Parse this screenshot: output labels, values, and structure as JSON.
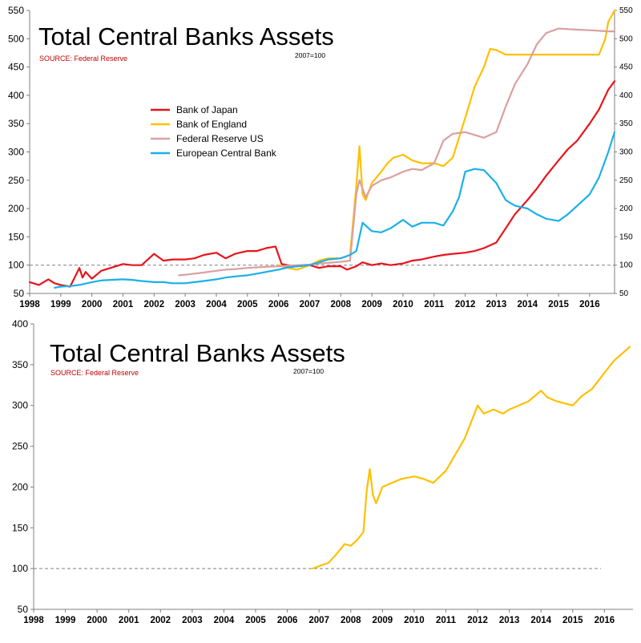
{
  "chart_data": [
    {
      "type": "line",
      "title": "Total Central Banks Assets",
      "source": "SOURCE: Federal Reserve",
      "note": "2007=100",
      "x_ticks": [
        "1998",
        "1999",
        "2000",
        "2001",
        "2002",
        "2003",
        "2004",
        "2005",
        "2006",
        "2007",
        "2008",
        "2009",
        "2010",
        "2011",
        "2012",
        "2013",
        "2014",
        "2015",
        "2016"
      ],
      "xlim": [
        1998,
        2016.8
      ],
      "ylim": [
        50,
        550
      ],
      "y_ticks": [
        50,
        100,
        150,
        200,
        250,
        300,
        350,
        400,
        450,
        500,
        550
      ],
      "right_y_ticks": [
        50,
        100,
        150,
        200,
        250,
        300,
        350,
        400,
        450,
        500,
        550
      ],
      "reference_line": 100,
      "legend_position": "upper-left",
      "series": [
        {
          "name": "Bank of Japan",
          "color": "#e8141c",
          "x": [
            1998.0,
            1998.3,
            1998.6,
            1998.8,
            1999.0,
            1999.3,
            1999.6,
            1999.7,
            1999.8,
            2000.0,
            2000.3,
            2000.6,
            2001.0,
            2001.3,
            2001.6,
            2002.0,
            2002.3,
            2002.6,
            2003.0,
            2003.3,
            2003.6,
            2004.0,
            2004.3,
            2004.6,
            2005.0,
            2005.3,
            2005.6,
            2005.9,
            2006.1,
            2006.3,
            2006.6,
            2007.0,
            2007.3,
            2007.6,
            2008.0,
            2008.2,
            2008.5,
            2008.7,
            2009.0,
            2009.3,
            2009.6,
            2010.0,
            2010.3,
            2010.6,
            2011.0,
            2011.3,
            2011.6,
            2012.0,
            2012.3,
            2012.6,
            2013.0,
            2013.3,
            2013.6,
            2014.0,
            2014.3,
            2014.6,
            2015.0,
            2015.3,
            2015.6,
            2016.0,
            2016.3,
            2016.6,
            2016.8
          ],
          "y": [
            70,
            65,
            75,
            68,
            65,
            62,
            95,
            78,
            88,
            76,
            90,
            95,
            102,
            100,
            100,
            120,
            108,
            110,
            110,
            112,
            118,
            122,
            112,
            120,
            125,
            125,
            130,
            133,
            102,
            100,
            98,
            100,
            95,
            98,
            98,
            92,
            98,
            105,
            100,
            103,
            100,
            103,
            108,
            110,
            115,
            118,
            120,
            122,
            125,
            130,
            140,
            165,
            190,
            215,
            235,
            258,
            285,
            305,
            320,
            350,
            375,
            410,
            425
          ]
        },
        {
          "name": "Bank of England",
          "color": "#ffc000",
          "x": [
            2006.0,
            2006.3,
            2006.6,
            2007.0,
            2007.3,
            2007.6,
            2008.0,
            2008.3,
            2008.5,
            2008.6,
            2008.7,
            2008.8,
            2009.0,
            2009.3,
            2009.5,
            2009.7,
            2010.0,
            2010.3,
            2010.6,
            2011.0,
            2011.3,
            2011.6,
            2012.0,
            2012.3,
            2012.6,
            2012.8,
            2013.0,
            2013.3,
            2013.6,
            2014.0,
            2014.3,
            2014.6,
            2015.0,
            2015.3,
            2015.6,
            2016.0,
            2016.3,
            2016.5,
            2016.6,
            2016.8
          ],
          "y": [
            100,
            95,
            92,
            100,
            108,
            112,
            112,
            118,
            240,
            310,
            225,
            215,
            245,
            265,
            280,
            290,
            295,
            285,
            280,
            280,
            275,
            290,
            360,
            415,
            450,
            482,
            480,
            472,
            472,
            472,
            472,
            472,
            472,
            472,
            472,
            472,
            472,
            500,
            530,
            550
          ]
        },
        {
          "name": "Federal Reserve US",
          "color": "#d9a0a0",
          "x": [
            2002.8,
            2003.0,
            2003.3,
            2003.6,
            2004.0,
            2004.3,
            2004.6,
            2005.0,
            2005.3,
            2005.6,
            2006.0,
            2006.3,
            2006.6,
            2007.0,
            2007.3,
            2007.6,
            2008.0,
            2008.3,
            2008.5,
            2008.6,
            2008.7,
            2008.8,
            2009.0,
            2009.3,
            2009.6,
            2010.0,
            2010.3,
            2010.6,
            2011.0,
            2011.3,
            2011.6,
            2012.0,
            2012.3,
            2012.6,
            2013.0,
            2013.3,
            2013.6,
            2014.0,
            2014.3,
            2014.6,
            2015.0,
            2015.3,
            2015.6,
            2016.0,
            2016.3,
            2016.6,
            2016.8
          ],
          "y": [
            82,
            83,
            85,
            87,
            90,
            92,
            93,
            95,
            96,
            97,
            98,
            99,
            100,
            101,
            103,
            104,
            106,
            108,
            225,
            250,
            235,
            220,
            240,
            250,
            255,
            265,
            270,
            268,
            280,
            320,
            332,
            335,
            330,
            325,
            335,
            380,
            420,
            455,
            490,
            510,
            518,
            517,
            516,
            515,
            514,
            513,
            513
          ]
        },
        {
          "name": "European Central Bank",
          "color": "#1ab0e8",
          "x": [
            1998.8,
            1999.0,
            1999.3,
            1999.6,
            2000.0,
            2000.3,
            2000.6,
            2001.0,
            2001.3,
            2001.6,
            2002.0,
            2002.3,
            2002.6,
            2003.0,
            2003.3,
            2003.6,
            2004.0,
            2004.3,
            2004.6,
            2005.0,
            2005.3,
            2005.6,
            2006.0,
            2006.3,
            2006.6,
            2007.0,
            2007.3,
            2007.6,
            2008.0,
            2008.3,
            2008.5,
            2008.7,
            2008.9,
            2009.0,
            2009.3,
            2009.6,
            2010.0,
            2010.3,
            2010.6,
            2011.0,
            2011.3,
            2011.6,
            2011.8,
            2012.0,
            2012.3,
            2012.6,
            2013.0,
            2013.3,
            2013.6,
            2014.0,
            2014.3,
            2014.6,
            2015.0,
            2015.3,
            2015.6,
            2016.0,
            2016.3,
            2016.6,
            2016.8
          ],
          "y": [
            60,
            62,
            63,
            65,
            70,
            73,
            74,
            75,
            74,
            72,
            70,
            70,
            68,
            68,
            70,
            72,
            75,
            78,
            80,
            82,
            85,
            88,
            92,
            96,
            98,
            100,
            105,
            110,
            112,
            118,
            125,
            175,
            165,
            160,
            158,
            165,
            180,
            168,
            175,
            175,
            170,
            195,
            220,
            265,
            270,
            268,
            245,
            215,
            205,
            200,
            190,
            182,
            178,
            190,
            205,
            225,
            255,
            300,
            335
          ]
        }
      ]
    },
    {
      "type": "line",
      "title": "Total Central Banks Assets",
      "source": "SOURCE: Federal Reserve",
      "note": "2007=100",
      "x_ticks": [
        "1998",
        "1999",
        "2000",
        "2001",
        "2002",
        "2003",
        "2004",
        "2005",
        "2006",
        "2007",
        "2008",
        "2009",
        "2010",
        "2011",
        "2012",
        "2013",
        "2014",
        "2015",
        "2016"
      ],
      "xlim": [
        1998,
        2016.9
      ],
      "ylim": [
        50,
        400
      ],
      "y_ticks": [
        50,
        100,
        150,
        200,
        250,
        300,
        350,
        400
      ],
      "reference_line": 100,
      "series": [
        {
          "color": "#ffc000",
          "x": [
            2006.8,
            2007.0,
            2007.3,
            2007.6,
            2007.8,
            2008.0,
            2008.2,
            2008.4,
            2008.5,
            2008.6,
            2008.7,
            2008.8,
            2009.0,
            2009.3,
            2009.6,
            2010.0,
            2010.3,
            2010.6,
            2011.0,
            2011.3,
            2011.6,
            2012.0,
            2012.2,
            2012.5,
            2012.8,
            2013.0,
            2013.3,
            2013.6,
            2014.0,
            2014.2,
            2014.5,
            2014.8,
            2015.0,
            2015.3,
            2015.6,
            2016.0,
            2016.3,
            2016.6,
            2016.8
          ],
          "y": [
            100,
            103,
            107,
            120,
            130,
            128,
            135,
            145,
            195,
            222,
            190,
            180,
            200,
            205,
            210,
            213,
            210,
            205,
            220,
            240,
            260,
            300,
            290,
            295,
            290,
            295,
            300,
            305,
            318,
            310,
            305,
            302,
            300,
            312,
            320,
            340,
            355,
            365,
            372
          ]
        }
      ]
    }
  ]
}
